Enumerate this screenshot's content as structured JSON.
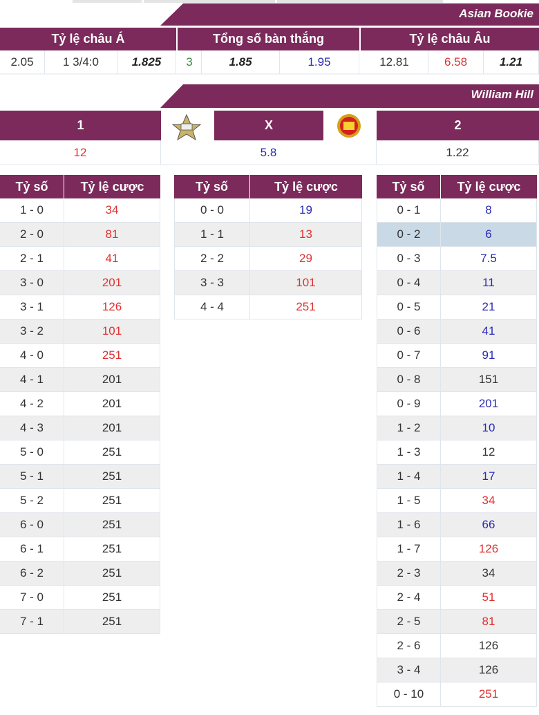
{
  "asian_bookie": {
    "title": "Asian Bookie",
    "headers": [
      "Tỷ lệ châu Á",
      "Tổng số bàn thắng",
      "Tỷ lệ châu Âu"
    ],
    "values": [
      {
        "text": "2.05",
        "color": "#333333",
        "bold": false
      },
      {
        "text": "1 3/4:0",
        "color": "#333333",
        "bold": false
      },
      {
        "text": "1.825",
        "color": "#222222",
        "bold": true
      },
      {
        "text": "3",
        "color": "#3a8a3a",
        "bold": false
      },
      {
        "text": "1.85",
        "color": "#222222",
        "bold": true
      },
      {
        "text": "1.95",
        "color": "#2a2ab8",
        "bold": false
      },
      {
        "text": "12.81",
        "color": "#333333",
        "bold": false
      },
      {
        "text": "6.58",
        "color": "#e03030",
        "bold": false
      },
      {
        "text": "1.21",
        "color": "#222222",
        "bold": true
      }
    ]
  },
  "william_hill": {
    "title": "William Hill",
    "headers": [
      "1",
      "X",
      "2"
    ],
    "values": [
      {
        "text": "12",
        "color": "#e03030"
      },
      {
        "text": "5.8",
        "color": "#2a2ab8"
      },
      {
        "text": "1.22",
        "color": "#333333"
      }
    ]
  },
  "score_tables": [
    {
      "headers": [
        "Tỷ số",
        "Tỷ lệ cược"
      ],
      "rows": [
        {
          "score": "1 - 0",
          "odds": "34",
          "color": "#e03030"
        },
        {
          "score": "2 - 0",
          "odds": "81",
          "color": "#e03030"
        },
        {
          "score": "2 - 1",
          "odds": "41",
          "color": "#e03030"
        },
        {
          "score": "3 - 0",
          "odds": "201",
          "color": "#e03030"
        },
        {
          "score": "3 - 1",
          "odds": "126",
          "color": "#e03030"
        },
        {
          "score": "3 - 2",
          "odds": "101",
          "color": "#e03030"
        },
        {
          "score": "4 - 0",
          "odds": "251",
          "color": "#e03030"
        },
        {
          "score": "4 - 1",
          "odds": "201",
          "color": "#333333"
        },
        {
          "score": "4 - 2",
          "odds": "201",
          "color": "#333333"
        },
        {
          "score": "4 - 3",
          "odds": "201",
          "color": "#333333"
        },
        {
          "score": "5 - 0",
          "odds": "251",
          "color": "#333333"
        },
        {
          "score": "5 - 1",
          "odds": "251",
          "color": "#333333"
        },
        {
          "score": "5 - 2",
          "odds": "251",
          "color": "#333333"
        },
        {
          "score": "6 - 0",
          "odds": "251",
          "color": "#333333"
        },
        {
          "score": "6 - 1",
          "odds": "251",
          "color": "#333333"
        },
        {
          "score": "6 - 2",
          "odds": "251",
          "color": "#333333"
        },
        {
          "score": "7 - 0",
          "odds": "251",
          "color": "#333333"
        },
        {
          "score": "7 - 1",
          "odds": "251",
          "color": "#333333"
        }
      ]
    },
    {
      "headers": [
        "Tỷ số",
        "Tỷ lệ cược"
      ],
      "rows": [
        {
          "score": "0 - 0",
          "odds": "19",
          "color": "#2a2ab8"
        },
        {
          "score": "1 - 1",
          "odds": "13",
          "color": "#e03030"
        },
        {
          "score": "2 - 2",
          "odds": "29",
          "color": "#e03030"
        },
        {
          "score": "3 - 3",
          "odds": "101",
          "color": "#e03030"
        },
        {
          "score": "4 - 4",
          "odds": "251",
          "color": "#e03030"
        }
      ]
    },
    {
      "headers": [
        "Tỷ số",
        "Tỷ lệ cược"
      ],
      "rows": [
        {
          "score": "0 - 1",
          "odds": "8",
          "color": "#2a2ab8"
        },
        {
          "score": "0 - 2",
          "odds": "6",
          "color": "#2a2ab8",
          "highlight": true
        },
        {
          "score": "0 - 3",
          "odds": "7.5",
          "color": "#2a2ab8"
        },
        {
          "score": "0 - 4",
          "odds": "11",
          "color": "#2a2ab8"
        },
        {
          "score": "0 - 5",
          "odds": "21",
          "color": "#2a2ab8"
        },
        {
          "score": "0 - 6",
          "odds": "41",
          "color": "#2a2ab8"
        },
        {
          "score": "0 - 7",
          "odds": "91",
          "color": "#2a2ab8"
        },
        {
          "score": "0 - 8",
          "odds": "151",
          "color": "#333333"
        },
        {
          "score": "0 - 9",
          "odds": "201",
          "color": "#2a2ab8"
        },
        {
          "score": "1 - 2",
          "odds": "10",
          "color": "#2a2ab8"
        },
        {
          "score": "1 - 3",
          "odds": "12",
          "color": "#333333"
        },
        {
          "score": "1 - 4",
          "odds": "17",
          "color": "#2a2ab8"
        },
        {
          "score": "1 - 5",
          "odds": "34",
          "color": "#e03030"
        },
        {
          "score": "1 - 6",
          "odds": "66",
          "color": "#2a2ab8"
        },
        {
          "score": "1 - 7",
          "odds": "126",
          "color": "#e03030"
        },
        {
          "score": "2 - 3",
          "odds": "34",
          "color": "#333333"
        },
        {
          "score": "2 - 4",
          "odds": "51",
          "color": "#e03030"
        },
        {
          "score": "2 - 5",
          "odds": "81",
          "color": "#e03030"
        },
        {
          "score": "2 - 6",
          "odds": "126",
          "color": "#333333"
        },
        {
          "score": "3 - 4",
          "odds": "126",
          "color": "#333333"
        },
        {
          "score": "0 - 10",
          "odds": "251",
          "color": "#e03030"
        }
      ]
    }
  ]
}
